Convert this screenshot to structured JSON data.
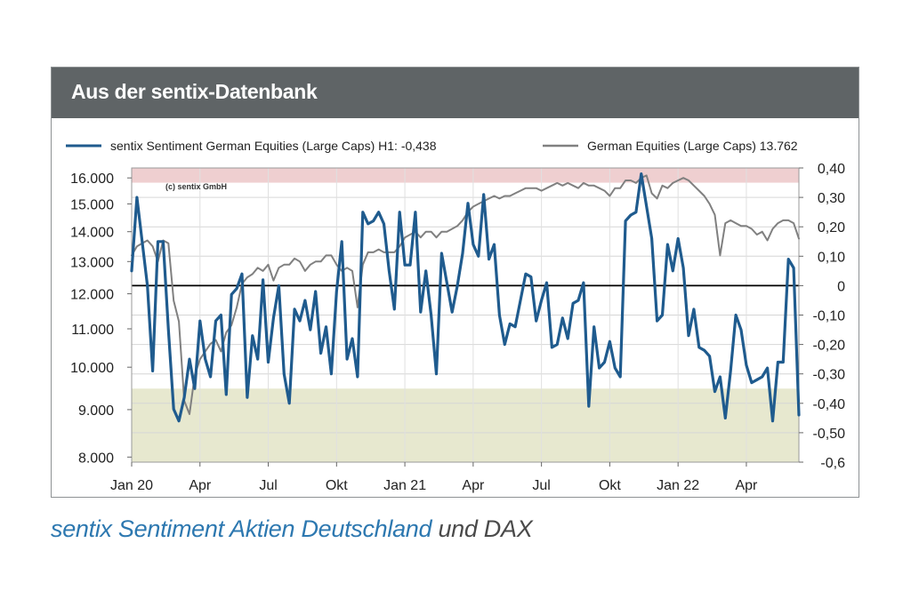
{
  "panel": {
    "title": "Aus der sentix-Datenbank"
  },
  "caption": {
    "part1": "sentix Sentiment Aktien Deutschland",
    "part2": " und DAX"
  },
  "chart_data": {
    "type": "line",
    "copyright": "(c) sentix GmbH",
    "legend": [
      {
        "label": "sentix Sentiment German Equities (Large Caps) H1: -0,438",
        "color": "#1f5b8e"
      },
      {
        "label": "German Equities (Large Caps) 13.762",
        "color": "#808080"
      }
    ],
    "x_ticks": [
      "Jan 20",
      "Apr",
      "Jul",
      "Okt",
      "Jan 21",
      "Apr",
      "Jul",
      "Okt",
      "Jan 22",
      "Apr"
    ],
    "x_tick_weeks": [
      0,
      13,
      26,
      39,
      52,
      65,
      78,
      91,
      104,
      117
    ],
    "x_range_weeks": [
      0,
      127
    ],
    "left_axis": {
      "ticks": [
        "8.000",
        "9.000",
        "10.000",
        "11.000",
        "12.000",
        "13.000",
        "14.000",
        "15.000",
        "16.000"
      ],
      "tick_values": [
        8000,
        9000,
        10000,
        11000,
        12000,
        13000,
        14000,
        15000,
        16000
      ],
      "range": [
        7900,
        16400
      ],
      "scale": "log"
    },
    "right_axis": {
      "ticks": [
        "0,40",
        "0,30",
        "0,20",
        "0,10",
        "0",
        "-0,10",
        "-0,20",
        "-0,30",
        "-0,40",
        "-0,50",
        "-0,6"
      ],
      "tick_values": [
        0.4,
        0.3,
        0.2,
        0.1,
        0,
        -0.1,
        -0.2,
        -0.3,
        -0.4,
        -0.5,
        -0.6
      ],
      "range": [
        -0.6,
        0.4
      ]
    },
    "bands": [
      {
        "axis": "right",
        "from": 0.35,
        "to": 0.4,
        "color": "#efcfd0"
      },
      {
        "axis": "right",
        "from": -0.6,
        "to": -0.35,
        "color": "#e7e8cf"
      }
    ],
    "zero_line": 0,
    "grid": true,
    "series": [
      {
        "name": "sentix Sentiment German Equities (Large Caps) H1: -0,438",
        "axis": "right",
        "color": "#1f5b8e",
        "values": [
          0.05,
          0.3,
          0.15,
          0.0,
          -0.29,
          0.15,
          0.15,
          -0.15,
          -0.42,
          -0.46,
          -0.38,
          -0.25,
          -0.35,
          -0.12,
          -0.25,
          -0.31,
          -0.12,
          -0.1,
          -0.37,
          -0.03,
          -0.01,
          0.04,
          -0.38,
          -0.17,
          -0.25,
          0.02,
          -0.26,
          -0.11,
          -0.0,
          -0.3,
          -0.4,
          -0.08,
          -0.12,
          -0.05,
          -0.15,
          -0.02,
          -0.23,
          -0.14,
          -0.3,
          -0.02,
          0.15,
          -0.25,
          -0.18,
          -0.31,
          0.25,
          0.21,
          0.22,
          0.25,
          0.21,
          0.05,
          -0.08,
          0.25,
          0.07,
          0.07,
          0.25,
          -0.09,
          0.05,
          -0.1,
          -0.3,
          0.11,
          0.01,
          -0.09,
          0.0,
          0.11,
          0.28,
          0.14,
          0.1,
          0.31,
          0.09,
          0.14,
          -0.1,
          -0.2,
          -0.13,
          -0.14,
          -0.05,
          0.04,
          0.03,
          -0.12,
          -0.05,
          0.01,
          -0.21,
          -0.2,
          -0.11,
          -0.18,
          -0.06,
          -0.05,
          0.01,
          -0.41,
          -0.14,
          -0.28,
          -0.26,
          -0.19,
          -0.28,
          -0.31,
          0.22,
          0.24,
          0.25,
          0.38,
          0.27,
          0.16,
          -0.12,
          -0.1,
          0.14,
          0.05,
          0.16,
          0.06,
          -0.17,
          -0.08,
          -0.21,
          -0.22,
          -0.24,
          -0.36,
          -0.31,
          -0.45,
          -0.29,
          -0.1,
          -0.15,
          -0.27,
          -0.33,
          -0.32,
          -0.31,
          -0.28,
          -0.46,
          -0.26,
          -0.26,
          0.09,
          0.06,
          -0.44
        ]
      },
      {
        "name": "German Equities (Large Caps) 13.762",
        "axis": "left",
        "color": "#808080",
        "values": [
          13200,
          13500,
          13600,
          13700,
          13500,
          13000,
          13700,
          13600,
          11800,
          11200,
          9200,
          8900,
          9800,
          10200,
          10400,
          10600,
          10700,
          10400,
          10900,
          11100,
          11600,
          12300,
          12500,
          12600,
          12800,
          12700,
          12900,
          12400,
          12800,
          12900,
          12900,
          13100,
          13000,
          12700,
          12900,
          13000,
          13000,
          13200,
          13200,
          12900,
          12700,
          12800,
          12700,
          11600,
          12900,
          13300,
          13300,
          13400,
          13300,
          13300,
          13300,
          13500,
          13800,
          13900,
          14000,
          13800,
          14000,
          14000,
          13800,
          14000,
          14000,
          14100,
          14200,
          14400,
          14700,
          14900,
          15000,
          15100,
          15200,
          15300,
          15200,
          15300,
          15300,
          15400,
          15500,
          15600,
          15600,
          15600,
          15500,
          15600,
          15700,
          15800,
          15700,
          15800,
          15700,
          15600,
          15800,
          15700,
          15700,
          15600,
          15500,
          15300,
          15600,
          15600,
          15900,
          15900,
          15800,
          16000,
          16100,
          15400,
          15200,
          15700,
          15600,
          15800,
          15900,
          16000,
          15900,
          15700,
          15500,
          15300,
          15000,
          14600,
          13200,
          14300,
          14400,
          14300,
          14200,
          14200,
          14100,
          13900,
          14000,
          13700,
          14100,
          14300,
          14400,
          14400,
          14300,
          13762
        ]
      }
    ]
  }
}
